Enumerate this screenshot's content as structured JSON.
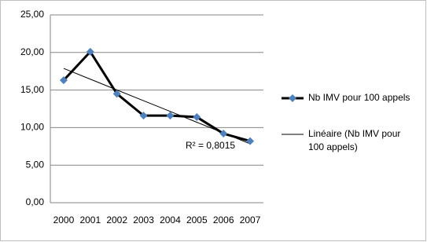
{
  "chart_data": {
    "type": "line",
    "categories": [
      "2000",
      "2001",
      "2002",
      "2003",
      "2004",
      "2005",
      "2006",
      "2007"
    ],
    "series": [
      {
        "name": "Nb IMV pour 100 appels",
        "color": "#000000",
        "marker_color": "#4f81bd",
        "values": [
          16.3,
          20.1,
          14.5,
          11.6,
          11.6,
          11.4,
          9.2,
          8.2
        ]
      },
      {
        "name": "Linéaire (Nb IMV pour 100 appels)",
        "color": "#000000",
        "values": [
          17.88,
          16.45,
          15.01,
          13.58,
          12.15,
          10.71,
          9.28,
          7.84
        ]
      }
    ],
    "annotation": "R² = 0,8015",
    "ylim": [
      0,
      25
    ],
    "yticks": [
      {
        "value": 0,
        "label": "0,00"
      },
      {
        "value": 5,
        "label": "5,00"
      },
      {
        "value": 10,
        "label": "10,00"
      },
      {
        "value": 15,
        "label": "15,00"
      },
      {
        "value": 20,
        "label": "20,00"
      },
      {
        "value": 25,
        "label": "25,00"
      }
    ],
    "grid": true
  }
}
